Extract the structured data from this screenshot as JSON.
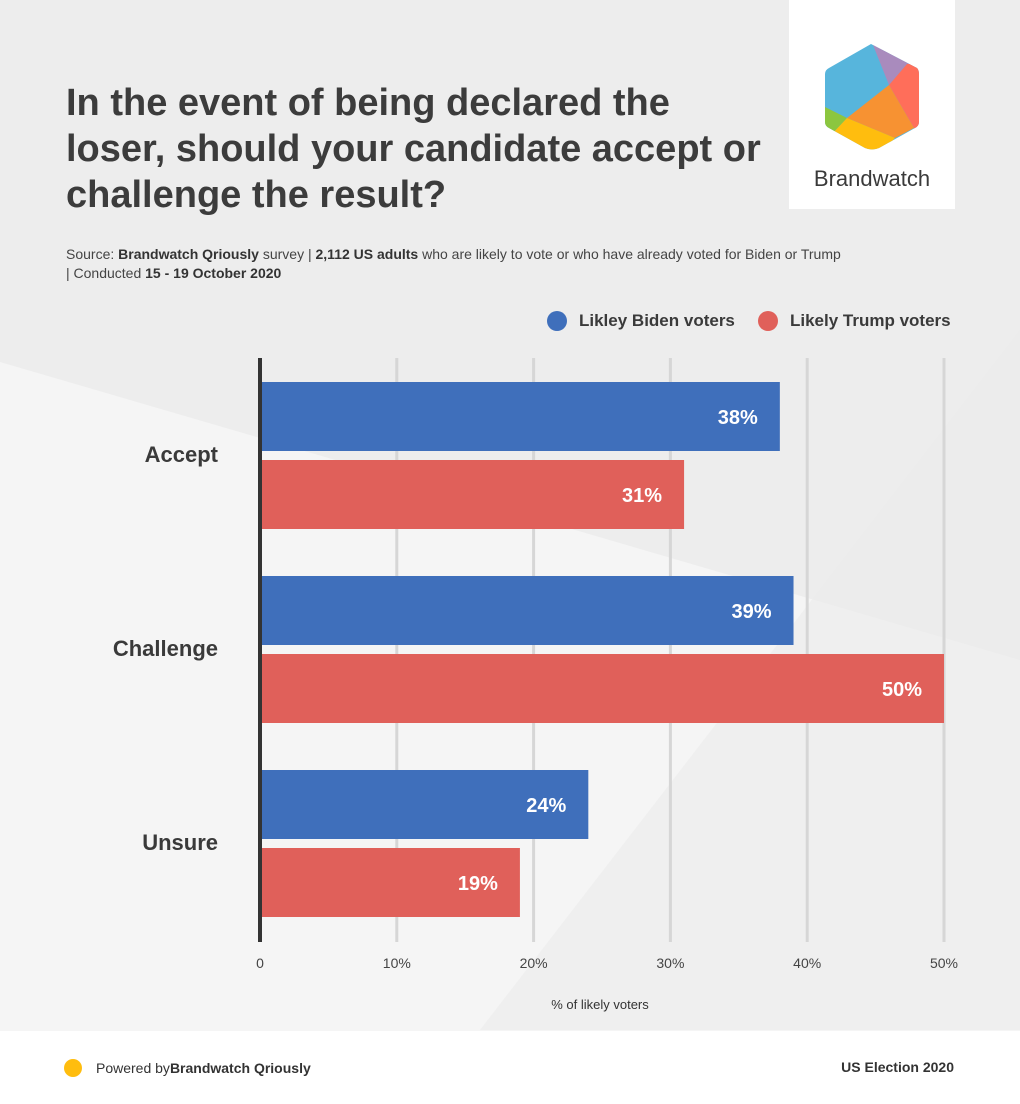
{
  "header": {
    "title": "In the event of being declared the loser, should your candidate accept or challenge the result?",
    "source_prefix": "Source: ",
    "source_brand": "Brandwatch Qriously",
    "source_mid": " survey | ",
    "source_sample": "2,112 US adults",
    "source_rest": " who are likely to vote or who have already voted for Biden or Trump",
    "source_cond": "| Conducted ",
    "source_dates": "15 - 19 October 2020"
  },
  "logo": {
    "text": "Brandwatch"
  },
  "colors": {
    "biden": "#3f6fbb",
    "trump": "#e0605a",
    "axis": "#333333",
    "grid": "#d6d6d6"
  },
  "chart_data": {
    "type": "bar",
    "orientation": "horizontal",
    "title": "In the event of being declared the loser, should your candidate accept or challenge the result?",
    "categories": [
      "Accept",
      "Challenge",
      "Unsure"
    ],
    "series": [
      {
        "name": "Likley Biden voters",
        "values": [
          38,
          39,
          24
        ]
      },
      {
        "name": "Likely Trump voters",
        "values": [
          31,
          50,
          19
        ]
      }
    ],
    "xlabel": "% of likely voters",
    "xlim": [
      0,
      50
    ],
    "xticks": [
      "0",
      "10%",
      "20%",
      "30%",
      "40%",
      "50%"
    ],
    "grid": true,
    "legend": "top-right"
  },
  "footer": {
    "powered_prefix": "Powered by ",
    "powered_brand": "Brandwatch Qriously",
    "right": "US Election 2020"
  }
}
